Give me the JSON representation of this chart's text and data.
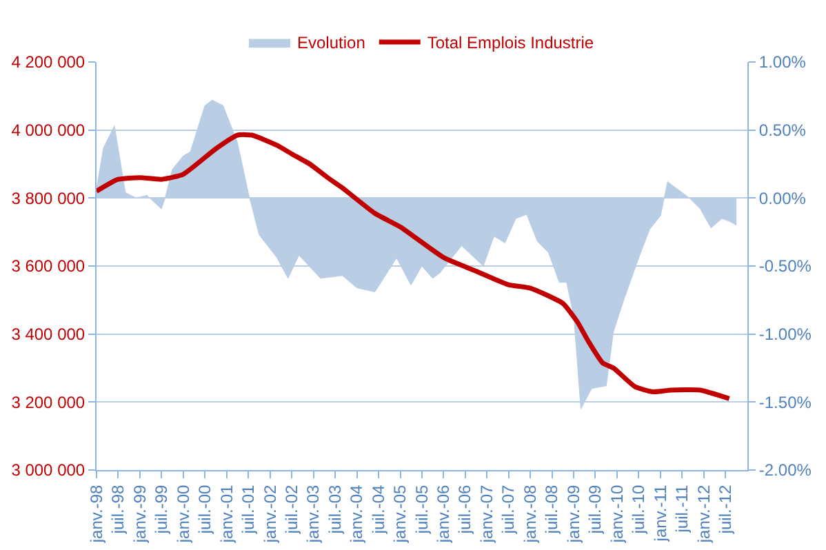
{
  "chart_data": {
    "type": "line",
    "legend": "top",
    "grid": "y",
    "marker": "none",
    "line_style": "solid",
    "xlim": [
      "1998-01",
      "2013-01"
    ],
    "xticks": [
      {
        "value": "1998-01",
        "label": "janv.-98"
      },
      {
        "value": "1998-07",
        "label": "juil.-98"
      },
      {
        "value": "1999-01",
        "label": "janv.-99"
      },
      {
        "value": "1999-07",
        "label": "juil.-99"
      },
      {
        "value": "2000-01",
        "label": "janv.-00"
      },
      {
        "value": "2000-07",
        "label": "juil.-00"
      },
      {
        "value": "2001-01",
        "label": "janv.-01"
      },
      {
        "value": "2001-07",
        "label": "juil.-01"
      },
      {
        "value": "2002-01",
        "label": "janv.-02"
      },
      {
        "value": "2002-07",
        "label": "juil.-02"
      },
      {
        "value": "2003-01",
        "label": "janv.-03"
      },
      {
        "value": "2003-07",
        "label": "juil.-03"
      },
      {
        "value": "2004-01",
        "label": "janv.-04"
      },
      {
        "value": "2004-07",
        "label": "juil.-04"
      },
      {
        "value": "2005-01",
        "label": "janv.-05"
      },
      {
        "value": "2005-07",
        "label": "juil.-05"
      },
      {
        "value": "2006-01",
        "label": "janv.-06"
      },
      {
        "value": "2006-07",
        "label": "juil.-06"
      },
      {
        "value": "2007-01",
        "label": "janv.-07"
      },
      {
        "value": "2007-07",
        "label": "juil.-07"
      },
      {
        "value": "2008-01",
        "label": "janv.-08"
      },
      {
        "value": "2008-07",
        "label": "juil.-08"
      },
      {
        "value": "2009-01",
        "label": "janv.-09"
      },
      {
        "value": "2009-07",
        "label": "juil.-09"
      },
      {
        "value": "2010-01",
        "label": "janv.-10"
      },
      {
        "value": "2010-07",
        "label": "juil.-10"
      },
      {
        "value": "2011-01",
        "label": "janv.-11"
      },
      {
        "value": "2011-07",
        "label": "juil.-11"
      },
      {
        "value": "2012-01",
        "label": "janv.-12"
      },
      {
        "value": "2012-07",
        "label": "juil.-12"
      }
    ],
    "ylim": [
      3000000,
      4200000
    ],
    "yticks": [
      {
        "value": 3000000,
        "label": "3 000 000"
      },
      {
        "value": 3200000,
        "label": "3 200 000"
      },
      {
        "value": 3400000,
        "label": "3 400 000"
      },
      {
        "value": 3600000,
        "label": "3 600 000"
      },
      {
        "value": 3800000,
        "label": "3 800 000"
      },
      {
        "value": 4000000,
        "label": "4 000 000"
      },
      {
        "value": 4200000,
        "label": "4 200 000"
      }
    ],
    "y2lim": [
      -2,
      1
    ],
    "y2ticks": [
      {
        "value": -2,
        "label": "-2.00%"
      },
      {
        "value": -1.5,
        "label": "-1.50%"
      },
      {
        "value": -1,
        "label": "-1.00%"
      },
      {
        "value": -0.5,
        "label": "-0.50%"
      },
      {
        "value": 0,
        "label": "0.00%"
      },
      {
        "value": 0.5,
        "label": "0.50%"
      },
      {
        "value": 1,
        "label": "1.00%"
      }
    ],
    "series": [
      {
        "name": "Evolution",
        "type": "area",
        "axis": "y2",
        "color": "#b9cde5",
        "x": [
          "1998-01",
          "1998-03",
          "1998-06",
          "1998-09",
          "1998-12",
          "1999-03",
          "1999-07",
          "1999-08",
          "1999-10",
          "2000-01",
          "2000-03",
          "2000-07",
          "2000-09",
          "2000-12",
          "2001-04",
          "2001-07",
          "2001-10",
          "2002-03",
          "2002-06",
          "2002-09",
          "2003-03",
          "2003-09",
          "2004-01",
          "2004-06",
          "2004-12",
          "2005-04",
          "2005-07",
          "2005-10",
          "2005-12",
          "2006-06",
          "2006-12",
          "2007-03",
          "2007-06",
          "2007-09",
          "2007-12",
          "2008-03",
          "2008-06",
          "2008-09",
          "2008-11",
          "2009-01",
          "2009-03",
          "2009-06",
          "2009-10",
          "2009-12",
          "2010-03",
          "2010-07",
          "2010-10",
          "2011-01",
          "2011-03",
          "2011-09",
          "2011-12",
          "2012-03",
          "2012-06",
          "2012-08",
          "2012-10"
        ],
        "values": [
          0.07,
          0.37,
          0.53,
          0.04,
          0,
          0.02,
          -0.08,
          0,
          0.21,
          0.31,
          0.34,
          0.68,
          0.72,
          0.68,
          0.41,
          0.04,
          -0.27,
          -0.44,
          -0.59,
          -0.42,
          -0.59,
          -0.57,
          -0.66,
          -0.69,
          -0.44,
          -0.64,
          -0.5,
          -0.59,
          -0.55,
          -0.35,
          -0.5,
          -0.28,
          -0.33,
          -0.15,
          -0.12,
          -0.32,
          -0.4,
          -0.62,
          -0.62,
          -0.87,
          -1.55,
          -1.4,
          -1.38,
          -0.98,
          -0.74,
          -0.44,
          -0.23,
          -0.13,
          0.12,
          0,
          -0.08,
          -0.22,
          -0.15,
          -0.17,
          -0.2
        ]
      },
      {
        "name": "Total Emplois Industrie",
        "color": "#c00000",
        "x": [
          "1998-01",
          "1998-07",
          "1999-01",
          "1999-07",
          "2000-01",
          "2000-10",
          "2001-04",
          "2001-08",
          "2002-03",
          "2002-07",
          "2002-12",
          "2003-05",
          "2003-09",
          "2004-06",
          "2005-01",
          "2006-01",
          "2006-10",
          "2007-07",
          "2008-01",
          "2008-10",
          "2009-02",
          "2009-05",
          "2009-09",
          "2009-12",
          "2010-06",
          "2010-11",
          "2011-04",
          "2011-12",
          "2012-08"
        ],
        "values": [
          3820000,
          3855000,
          3860000,
          3855000,
          3870000,
          3945000,
          3985000,
          3985000,
          3955000,
          3930000,
          3900000,
          3860000,
          3830000,
          3755000,
          3715000,
          3625000,
          3585000,
          3545000,
          3535000,
          3490000,
          3435000,
          3380000,
          3315000,
          3300000,
          3245000,
          3230000,
          3235000,
          3235000,
          3210000
        ]
      }
    ]
  }
}
